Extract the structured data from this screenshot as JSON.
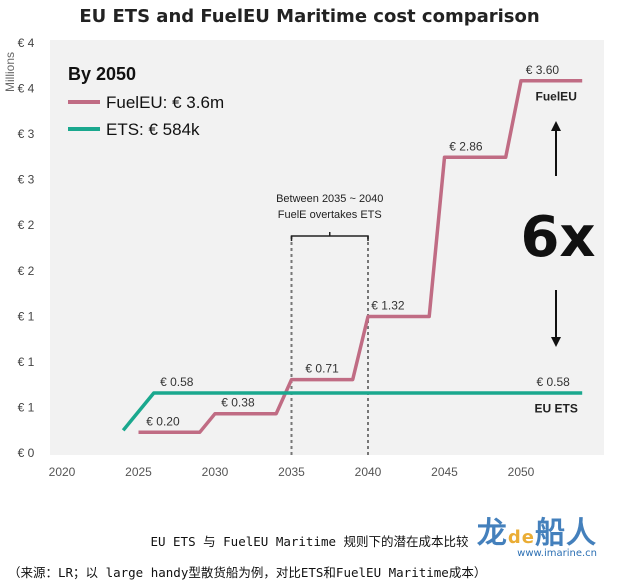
{
  "chart_data": {
    "type": "line",
    "title": "EU ETS and FuelEU Maritime cost comparison",
    "ylabel": "Millions",
    "xlabel": "",
    "x_ticks": [
      2020,
      2025,
      2030,
      2035,
      2040,
      2045,
      2050
    ],
    "y_tick_labels": [
      "€ 0",
      "€ 1",
      "€ 1",
      "€ 1",
      "€ 2",
      "€ 2",
      "€ 3",
      "€ 3",
      "€ 4",
      "€ 4"
    ],
    "xlim": [
      2019,
      2056
    ],
    "ylim": [
      0,
      4
    ],
    "grid": false,
    "legend": {
      "title": "By 2050",
      "items": [
        {
          "label": "FuelEU: € 3.6m",
          "color": "#c06c84"
        },
        {
          "label": "ETS: € 584k",
          "color": "#1aa88e"
        }
      ]
    },
    "series": [
      {
        "name": "FuelEU",
        "color": "#c06c84",
        "points": [
          [
            2025,
            0.2
          ],
          [
            2029,
            0.2
          ],
          [
            2030,
            0.38
          ],
          [
            2034,
            0.38
          ],
          [
            2035,
            0.71
          ],
          [
            2039,
            0.71
          ],
          [
            2040,
            1.32
          ],
          [
            2044,
            1.32
          ],
          [
            2045,
            2.86
          ],
          [
            2049,
            2.86
          ],
          [
            2050,
            3.6
          ],
          [
            2054,
            3.6
          ]
        ]
      },
      {
        "name": "EU ETS",
        "color": "#1aa88e",
        "points": [
          [
            2024,
            0.22
          ],
          [
            2026,
            0.58
          ],
          [
            2054,
            0.58
          ]
        ]
      }
    ],
    "data_labels": [
      {
        "text": "€ 0.20",
        "x": 2026.6,
        "y": 0.2
      },
      {
        "text": "€ 0.38",
        "x": 2031.5,
        "y": 0.38
      },
      {
        "text": "€ 0.71",
        "x": 2037.0,
        "y": 0.71
      },
      {
        "text": "€ 1.32",
        "x": 2041.3,
        "y": 1.32
      },
      {
        "text": "€ 2.86",
        "x": 2046.4,
        "y": 2.86
      },
      {
        "text": "€ 3.60",
        "x": 2051.4,
        "y": 3.6
      },
      {
        "text": "€ 0.58",
        "x": 2027.5,
        "y": 0.58
      },
      {
        "text": "€ 0.58",
        "x": 2052.1,
        "y": 0.58
      }
    ],
    "series_labels": [
      {
        "text": "FuelEU",
        "x": 2052.3,
        "y": 3.45
      },
      {
        "text": "EU ETS",
        "x": 2052.3,
        "y": 0.43
      }
    ],
    "annotations": {
      "bracket_text_line1": "Between 2035 ~ 2040",
      "bracket_text_line2": "FuelE overtakes ETS",
      "bracket_from": 2035,
      "bracket_to": 2040,
      "ratio_text": "6x"
    }
  },
  "caption": {
    "line1": "EU ETS 与 FuelEU Maritime 规则下的潜在成本比较",
    "line2": "（来源：LR；以 large handy型散货船为例，对比ETS和FuelEU Maritime成本）"
  },
  "watermark": {
    "text_main": "龙",
    "text_de": "de",
    "text_tail": "船人",
    "url": "www.imarine.cn"
  },
  "colors": {
    "fueleu": "#c06c84",
    "ets": "#1aa88e",
    "plot_bg": "#f2f2f2"
  }
}
